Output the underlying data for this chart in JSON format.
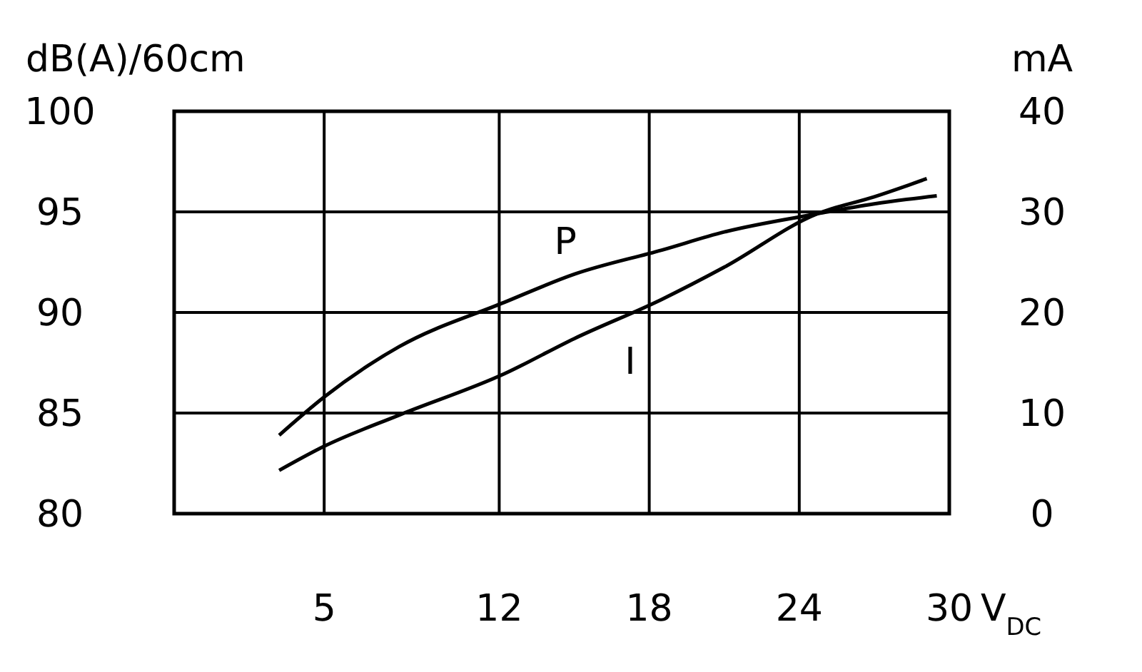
{
  "chart_data": {
    "type": "line",
    "xlabel": "V$_{DC}$",
    "ylabel": "dB(A)/60cm",
    "y2label": "mA",
    "xlim": [
      -1,
      30
    ],
    "xticks": [
      5,
      12,
      18,
      24,
      30
    ],
    "ylim": [
      80,
      100
    ],
    "yticks": [
      80,
      85,
      90,
      95,
      100
    ],
    "y2lim": [
      0,
      40
    ],
    "y2ticks": [
      0,
      10,
      20,
      30,
      40
    ],
    "grid": true,
    "marker": "none",
    "line_style": "solid",
    "series": [
      {
        "name": "P",
        "color": "#000000",
        "x": [
          3.2,
          5,
          8,
          12.2,
          15,
          18.5,
          21,
          24.7,
          27,
          29.5
        ],
        "values": [
          83.9,
          85.8,
          88.3,
          90.5,
          91.9,
          93.1,
          94,
          94.9,
          95.4,
          95.8
        ]
      },
      {
        "name": "I",
        "color": "#000000",
        "axis": "y2",
        "x": [
          3.2,
          5,
          8,
          12.2,
          15,
          18.5,
          21,
          24.7,
          27,
          29.1
        ],
        "values": [
          4.3,
          6.7,
          9.8,
          13.9,
          17.4,
          21.3,
          24.5,
          29.8,
          31.5,
          33.3
        ]
      }
    ]
  }
}
